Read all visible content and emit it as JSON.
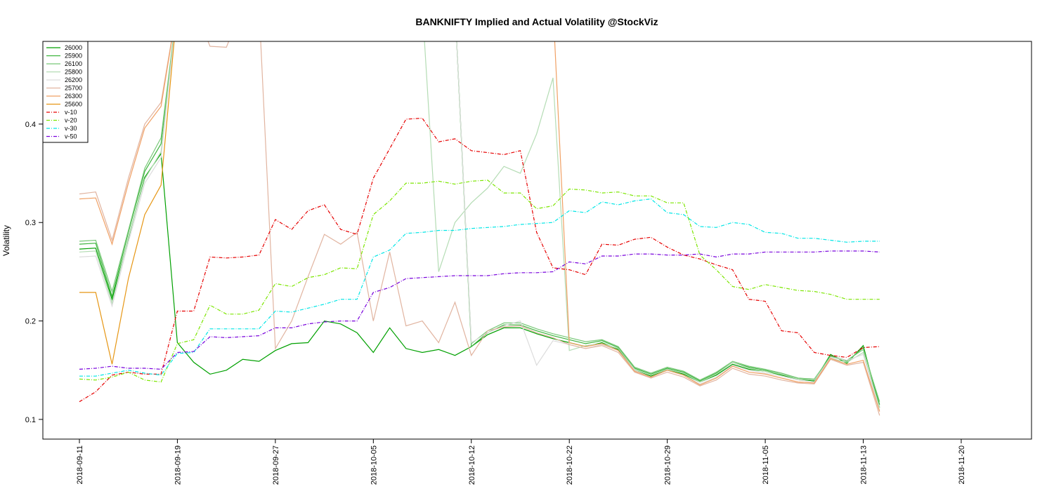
{
  "chart_data": {
    "type": "line",
    "title": "BANKNIFTY Implied and Actual Volatility @StockViz",
    "xlabel": "",
    "ylabel": "Volatility",
    "ylim": [
      0.08,
      0.484
    ],
    "y_ticks": [
      "0.1",
      "0.2",
      "0.3",
      "0.4"
    ],
    "x_tick_labels": [
      "2018-09-11",
      "2018-09-19",
      "2018-09-27",
      "2018-10-05",
      "2018-10-12",
      "2018-10-22",
      "2018-10-29",
      "2018-11-05",
      "2018-11-13",
      "2018-11-20"
    ],
    "x_tick_index": [
      0,
      6,
      12,
      18,
      24,
      30,
      36,
      42,
      48,
      54
    ],
    "legend_position": "top-left",
    "grid": false,
    "series": [
      {
        "name": "26000",
        "color": "#00a000",
        "dash": "solid",
        "values": [
          0.273,
          0.274,
          0.222,
          0.284,
          0.346,
          0.37,
          0.178,
          0.158,
          0.146,
          0.15,
          0.161,
          0.159,
          0.17,
          0.177,
          0.178,
          0.2,
          0.197,
          0.188,
          0.168,
          0.193,
          0.172,
          0.168,
          0.171,
          0.165,
          0.174,
          0.186,
          0.193,
          0.193,
          0.187,
          0.182,
          0.178,
          0.174,
          0.178,
          0.171,
          0.15,
          0.144,
          0.151,
          0.146,
          0.138,
          0.145,
          0.156,
          0.151,
          0.149,
          0.145,
          0.141,
          0.139,
          0.166,
          0.157,
          0.175,
          0.112
        ]
      },
      {
        "name": "25900",
        "color": "#3cb43c",
        "dash": "solid",
        "values": [
          0.278,
          0.279,
          0.225,
          0.29,
          0.352,
          0.38,
          0.52,
          0.52,
          0.52,
          0.52,
          0.52,
          0.52,
          0.52,
          0.52,
          0.52,
          0.52,
          0.52,
          0.52,
          0.52,
          0.52,
          0.52,
          0.52,
          0.52,
          0.52,
          0.174,
          0.188,
          0.196,
          0.196,
          0.19,
          0.185,
          0.181,
          0.177,
          0.18,
          0.173,
          0.152,
          0.146,
          0.152,
          0.148,
          0.139,
          0.147,
          0.158,
          0.153,
          0.15,
          0.146,
          0.142,
          0.14,
          0.165,
          0.159,
          0.173,
          0.115
        ]
      },
      {
        "name": "26100",
        "color": "#78c878",
        "dash": "solid",
        "values": [
          0.281,
          0.282,
          0.23,
          0.292,
          0.355,
          0.386,
          0.52,
          0.52,
          0.52,
          0.52,
          0.52,
          0.52,
          0.52,
          0.52,
          0.52,
          0.52,
          0.52,
          0.52,
          0.52,
          0.52,
          0.52,
          0.52,
          0.52,
          0.52,
          0.177,
          0.19,
          0.198,
          0.198,
          0.192,
          0.187,
          0.183,
          0.179,
          0.181,
          0.174,
          0.153,
          0.147,
          0.153,
          0.149,
          0.14,
          0.148,
          0.159,
          0.154,
          0.151,
          0.147,
          0.142,
          0.141,
          0.164,
          0.16,
          0.171,
          0.118
        ]
      },
      {
        "name": "25800",
        "color": "#b4dcb4",
        "dash": "solid",
        "values": [
          0.27,
          0.271,
          0.218,
          0.285,
          0.344,
          0.372,
          0.52,
          0.52,
          0.52,
          0.52,
          0.52,
          0.52,
          0.52,
          0.52,
          0.52,
          0.52,
          0.52,
          0.52,
          0.52,
          0.52,
          0.52,
          0.52,
          0.25,
          0.3,
          0.32,
          0.335,
          0.357,
          0.35,
          0.39,
          0.447,
          0.17,
          0.175,
          0.177,
          0.172,
          0.151,
          0.145,
          0.151,
          0.147,
          0.138,
          0.146,
          0.158,
          0.152,
          0.149,
          0.146,
          0.141,
          0.14,
          0.162,
          0.158,
          0.168,
          0.112
        ]
      },
      {
        "name": "26200",
        "color": "#dcdcdc",
        "dash": "solid",
        "values": [
          0.265,
          0.266,
          0.215,
          0.28,
          0.34,
          0.366,
          0.52,
          0.52,
          0.52,
          0.52,
          0.52,
          0.52,
          0.52,
          0.52,
          0.52,
          0.52,
          0.52,
          0.52,
          0.52,
          0.52,
          0.52,
          0.52,
          0.52,
          0.52,
          0.178,
          0.188,
          0.195,
          0.2,
          0.155,
          0.18,
          0.176,
          0.172,
          0.176,
          0.17,
          0.15,
          0.143,
          0.15,
          0.145,
          0.136,
          0.143,
          0.155,
          0.15,
          0.147,
          0.144,
          0.14,
          0.138,
          0.163,
          0.16,
          0.166,
          0.109
        ]
      },
      {
        "name": "25700",
        "color": "#e1b4a0",
        "dash": "solid",
        "values": [
          0.329,
          0.331,
          0.282,
          0.345,
          0.4,
          0.422,
          0.52,
          0.52,
          0.479,
          0.478,
          0.52,
          0.52,
          0.172,
          0.2,
          0.245,
          0.288,
          0.278,
          0.29,
          0.2,
          0.27,
          0.195,
          0.2,
          0.178,
          0.219,
          0.165,
          0.19,
          0.194,
          0.195,
          0.188,
          0.183,
          0.176,
          0.172,
          0.175,
          0.168,
          0.148,
          0.142,
          0.148,
          0.143,
          0.134,
          0.14,
          0.152,
          0.146,
          0.144,
          0.14,
          0.137,
          0.136,
          0.161,
          0.155,
          0.158,
          0.104
        ]
      },
      {
        "name": "26300",
        "color": "#f0a064",
        "dash": "solid",
        "values": [
          0.324,
          0.325,
          0.278,
          0.34,
          0.396,
          0.418,
          0.52,
          0.52,
          0.52,
          0.52,
          0.52,
          0.52,
          0.52,
          0.52,
          0.52,
          0.52,
          0.52,
          0.52,
          0.52,
          0.52,
          0.52,
          0.52,
          0.52,
          0.52,
          0.52,
          0.52,
          0.52,
          0.52,
          0.52,
          0.52,
          0.178,
          0.174,
          0.177,
          0.17,
          0.149,
          0.143,
          0.15,
          0.145,
          0.135,
          0.142,
          0.154,
          0.148,
          0.146,
          0.142,
          0.138,
          0.137,
          0.162,
          0.156,
          0.16,
          0.108
        ]
      },
      {
        "name": "25600",
        "color": "#e69614",
        "dash": "solid",
        "values": [
          0.229,
          0.229,
          0.156,
          0.243,
          0.308,
          0.338,
          0.52,
          0.52,
          0.52,
          0.52,
          0.52,
          0.52,
          0.52,
          0.52,
          0.52,
          0.52,
          0.52,
          0.52,
          0.52,
          0.52,
          0.52,
          0.52,
          0.52,
          0.52,
          0.52,
          0.52,
          0.52,
          0.52,
          0.52,
          0.52,
          0.52,
          0.52,
          0.52,
          0.52,
          0.52,
          0.52,
          0.52,
          0.52,
          0.52,
          0.52,
          0.52,
          0.52,
          0.52,
          0.52,
          0.52,
          0.52,
          0.52,
          0.52,
          0.52,
          0.52
        ]
      },
      {
        "name": "v-10",
        "color": "#e60000",
        "dash": "dashdot",
        "values": [
          0.118,
          0.128,
          0.145,
          0.148,
          0.146,
          0.146,
          0.21,
          0.21,
          0.265,
          0.264,
          0.265,
          0.267,
          0.303,
          0.293,
          0.312,
          0.318,
          0.293,
          0.288,
          0.345,
          0.375,
          0.405,
          0.406,
          0.382,
          0.385,
          0.373,
          0.371,
          0.369,
          0.373,
          0.29,
          0.254,
          0.252,
          0.247,
          0.278,
          0.277,
          0.283,
          0.285,
          0.275,
          0.267,
          0.263,
          0.257,
          0.252,
          0.222,
          0.22,
          0.19,
          0.188,
          0.168,
          0.165,
          0.163,
          0.173,
          0.174
        ]
      },
      {
        "name": "v-20",
        "color": "#7ce600",
        "dash": "dashdot",
        "values": [
          0.141,
          0.14,
          0.143,
          0.148,
          0.14,
          0.138,
          0.177,
          0.181,
          0.216,
          0.207,
          0.207,
          0.211,
          0.238,
          0.235,
          0.244,
          0.247,
          0.254,
          0.253,
          0.308,
          0.322,
          0.34,
          0.34,
          0.342,
          0.339,
          0.342,
          0.343,
          0.33,
          0.33,
          0.314,
          0.317,
          0.334,
          0.333,
          0.33,
          0.331,
          0.327,
          0.327,
          0.32,
          0.32,
          0.267,
          0.252,
          0.235,
          0.232,
          0.237,
          0.234,
          0.231,
          0.23,
          0.227,
          0.222,
          0.222,
          0.222
        ]
      },
      {
        "name": "v-30",
        "color": "#00e6e6",
        "dash": "dashdot",
        "values": [
          0.144,
          0.144,
          0.147,
          0.15,
          0.147,
          0.145,
          0.167,
          0.168,
          0.192,
          0.192,
          0.192,
          0.192,
          0.21,
          0.209,
          0.213,
          0.217,
          0.222,
          0.222,
          0.265,
          0.272,
          0.289,
          0.29,
          0.292,
          0.292,
          0.294,
          0.295,
          0.296,
          0.298,
          0.299,
          0.3,
          0.312,
          0.31,
          0.321,
          0.318,
          0.322,
          0.324,
          0.31,
          0.308,
          0.296,
          0.295,
          0.3,
          0.298,
          0.29,
          0.289,
          0.284,
          0.284,
          0.282,
          0.28,
          0.281,
          0.281
        ]
      },
      {
        "name": "v-50",
        "color": "#7800dc",
        "dash": "dashdot",
        "values": [
          0.151,
          0.152,
          0.154,
          0.152,
          0.152,
          0.151,
          0.168,
          0.169,
          0.184,
          0.183,
          0.184,
          0.185,
          0.193,
          0.193,
          0.197,
          0.199,
          0.2,
          0.2,
          0.229,
          0.234,
          0.243,
          0.244,
          0.245,
          0.246,
          0.246,
          0.246,
          0.248,
          0.249,
          0.249,
          0.25,
          0.26,
          0.258,
          0.266,
          0.266,
          0.268,
          0.268,
          0.267,
          0.267,
          0.268,
          0.265,
          0.268,
          0.268,
          0.27,
          0.27,
          0.27,
          0.27,
          0.271,
          0.271,
          0.271,
          0.27
        ]
      }
    ]
  }
}
